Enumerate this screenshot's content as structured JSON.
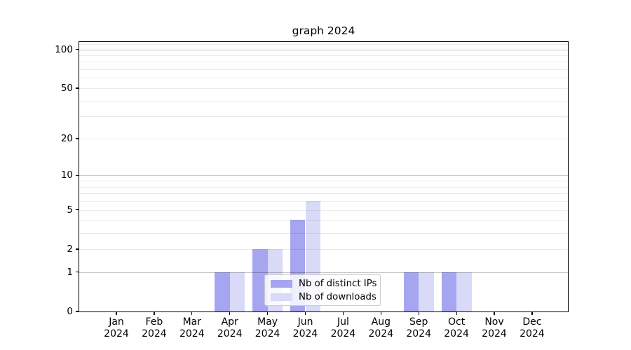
{
  "title": "graph 2024",
  "chart_data": {
    "type": "bar",
    "title": "graph 2024",
    "categories": [
      "Jan",
      "Feb",
      "Mar",
      "Apr",
      "May",
      "Jun",
      "Jul",
      "Aug",
      "Sep",
      "Oct",
      "Nov",
      "Dec"
    ],
    "year": "2024",
    "series": [
      {
        "name": "Nb of distinct IPs",
        "color": "#a5a5f0",
        "values": [
          0,
          0,
          0,
          1,
          2,
          4,
          0,
          0,
          1,
          1,
          0,
          0
        ]
      },
      {
        "name": "Nb of downloads",
        "color": "#d9d9f8",
        "values": [
          0,
          0,
          0,
          1,
          2,
          6,
          0,
          0,
          1,
          1,
          0,
          0
        ]
      }
    ],
    "yscale": "log1p",
    "ylim": [
      0,
      114
    ],
    "yticks": [
      0,
      1,
      2,
      5,
      10,
      20,
      50,
      100
    ],
    "major_gridlines": [
      1,
      10,
      100
    ],
    "minor_gridlines": [
      2,
      3,
      4,
      5,
      6,
      7,
      8,
      9,
      20,
      30,
      40,
      50,
      60,
      70,
      80,
      90,
      110
    ],
    "grid": true,
    "grid_major_color": "rgba(0,0,0,0.24)",
    "grid_minor_color": "rgba(0,0,0,0.08)",
    "legend_position": "lower center",
    "axis_color": "#000000",
    "background_color": "#ffffff"
  }
}
